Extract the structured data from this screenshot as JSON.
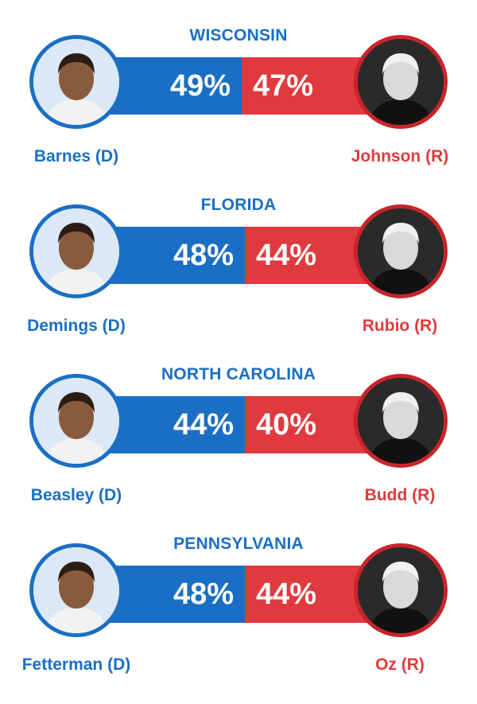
{
  "colors": {
    "democrat": "#1a6fc4",
    "republican": "#e03a3e"
  },
  "chart_data": {
    "type": "bar",
    "orientation": "horizontal-stacked",
    "categories": [
      "WISCONSIN",
      "FLORIDA",
      "NORTH CAROLINA",
      "PENNSYLVANIA"
    ],
    "series": [
      {
        "party": "D",
        "values": [
          49,
          48,
          44,
          48
        ]
      },
      {
        "party": "R",
        "values": [
          47,
          44,
          40,
          44
        ]
      }
    ],
    "races": [
      {
        "state": "WISCONSIN",
        "dem": {
          "name": "Barnes (D)",
          "pct": 49,
          "pct_label": "49%"
        },
        "rep": {
          "name": "Johnson (R)",
          "pct": 47,
          "pct_label": "47%"
        }
      },
      {
        "state": "FLORIDA",
        "dem": {
          "name": "Demings (D)",
          "pct": 48,
          "pct_label": "48%"
        },
        "rep": {
          "name": "Rubio (R)",
          "pct": 44,
          "pct_label": "44%"
        }
      },
      {
        "state": "NORTH CAROLINA",
        "dem": {
          "name": "Beasley (D)",
          "pct": 44,
          "pct_label": "44%"
        },
        "rep": {
          "name": "Budd (R)",
          "pct": 40,
          "pct_label": "40%"
        }
      },
      {
        "state": "PENNSYLVANIA",
        "dem": {
          "name": "Fetterman (D)",
          "pct": 48,
          "pct_label": "48%"
        },
        "rep": {
          "name": "Oz (R)",
          "pct": 44,
          "pct_label": "44%"
        }
      }
    ]
  }
}
